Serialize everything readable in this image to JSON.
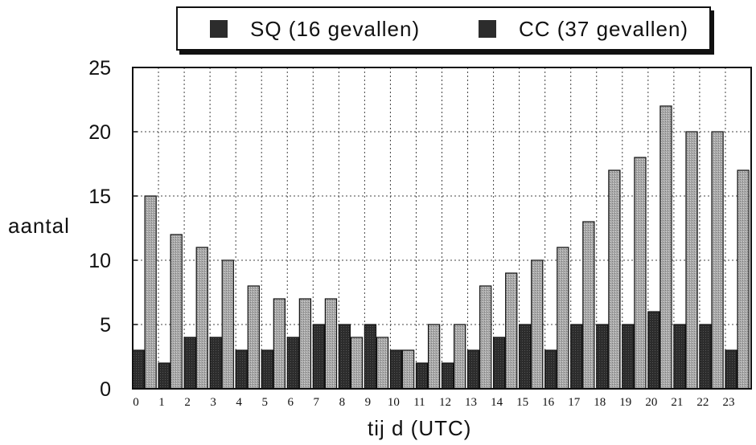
{
  "chart_data": {
    "type": "bar",
    "categories": [
      "0",
      "1",
      "2",
      "3",
      "4",
      "5",
      "6",
      "7",
      "8",
      "9",
      "10",
      "11",
      "12",
      "13",
      "14",
      "15",
      "16",
      "17",
      "18",
      "19",
      "20",
      "21",
      "22",
      "23"
    ],
    "series": [
      {
        "name": "SQ (16 gevallen)",
        "values": [
          3,
          2,
          4,
          4,
          3,
          3,
          4,
          5,
          5,
          5,
          3,
          2,
          2,
          3,
          4,
          5,
          3,
          5,
          5,
          5,
          6,
          5,
          5,
          3
        ],
        "color": "#2c2c2c"
      },
      {
        "name": "CC (37 gevallen)",
        "values": [
          15,
          12,
          11,
          10,
          8,
          7,
          7,
          7,
          4,
          4,
          3,
          5,
          5,
          8,
          9,
          10,
          11,
          13,
          17,
          18,
          22,
          20,
          20,
          17
        ],
        "color": "#a8a8a8"
      }
    ],
    "ylim": [
      0,
      25
    ],
    "yticks": [
      "0",
      "5",
      "10",
      "15",
      "20",
      "25"
    ],
    "xlabel": "tij d (UTC)",
    "ylabel": "aantal",
    "grid": true,
    "legend_position": "top"
  }
}
